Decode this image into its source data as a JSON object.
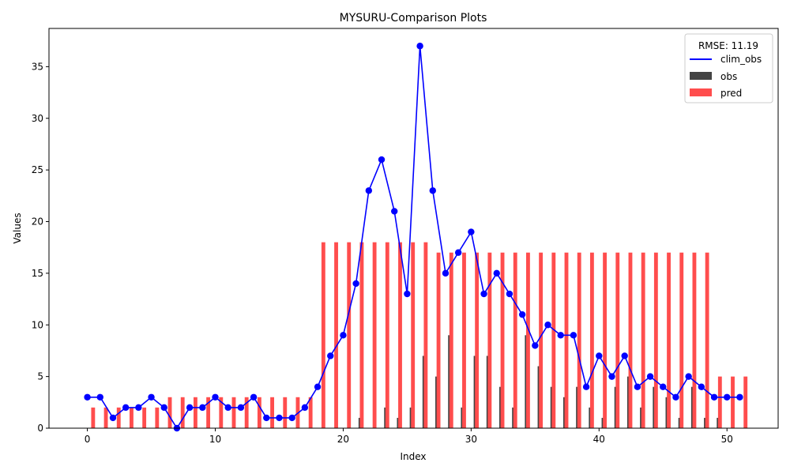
{
  "chart_data": {
    "type": "bar",
    "title": "MYSURU-Comparison Plots",
    "xlabel": "Index",
    "ylabel": "Values",
    "xlim": [
      -3,
      54
    ],
    "ylim": [
      0,
      38.7
    ],
    "xticks": [
      0,
      10,
      20,
      30,
      40,
      50
    ],
    "yticks": [
      0,
      5,
      10,
      15,
      20,
      25,
      30,
      35
    ],
    "legend": {
      "title": "RMSE: 11.19",
      "position": "top-right"
    },
    "x": [
      0,
      1,
      2,
      3,
      4,
      5,
      6,
      7,
      8,
      9,
      10,
      11,
      12,
      13,
      14,
      15,
      16,
      17,
      18,
      19,
      20,
      21,
      22,
      23,
      24,
      25,
      26,
      27,
      28,
      29,
      30,
      31,
      32,
      33,
      34,
      35,
      36,
      37,
      38,
      39,
      40,
      41,
      42,
      43,
      44,
      45,
      46,
      47,
      48,
      49,
      50,
      51
    ],
    "series": [
      {
        "name": "clim_obs",
        "kind": "line",
        "color": "#0000ff",
        "values": [
          3,
          3,
          1,
          2,
          2,
          3,
          2,
          0,
          2,
          2,
          3,
          2,
          2,
          3,
          1,
          1,
          1,
          2,
          4,
          7,
          9,
          14,
          23,
          26,
          21,
          13,
          37,
          23,
          15,
          17,
          19,
          13,
          15,
          13,
          11,
          8,
          10,
          9,
          9,
          4,
          7,
          5,
          7,
          4,
          5,
          4,
          3,
          5,
          4,
          3,
          3,
          3
        ]
      },
      {
        "name": "obs",
        "kind": "bar",
        "color": "#444444",
        "values": [
          0,
          0,
          0,
          0,
          0,
          0,
          0,
          0,
          0,
          0,
          0,
          0,
          0,
          0,
          0,
          0,
          0,
          0,
          0,
          0,
          0,
          1,
          0,
          2,
          1,
          2,
          7,
          5,
          9,
          2,
          7,
          7,
          4,
          2,
          9,
          6,
          4,
          3,
          4,
          2,
          1,
          4,
          5,
          2,
          4,
          3,
          1,
          4,
          1,
          1,
          0,
          0
        ]
      },
      {
        "name": "pred",
        "kind": "bar",
        "color": "#ff4d4d",
        "values": [
          2,
          2,
          2,
          2,
          2,
          2,
          3,
          3,
          3,
          3,
          3,
          3,
          3,
          3,
          3,
          3,
          3,
          3,
          18,
          18,
          18,
          18,
          18,
          18,
          18,
          18,
          18,
          17,
          17,
          17,
          17,
          17,
          17,
          17,
          17,
          17,
          17,
          17,
          17,
          17,
          17,
          17,
          17,
          17,
          17,
          17,
          17,
          17,
          17,
          5,
          5,
          5
        ]
      }
    ]
  }
}
